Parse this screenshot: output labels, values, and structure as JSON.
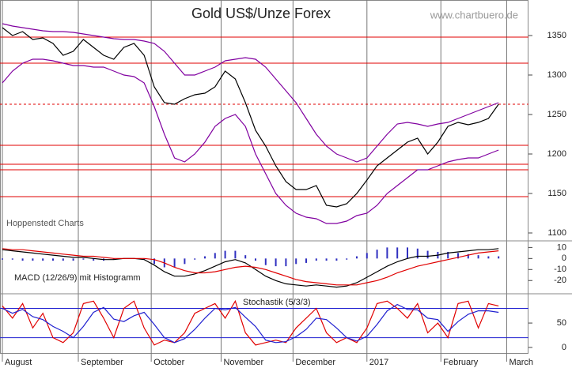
{
  "chart_data": [
    {
      "type": "line",
      "title": "Gold US$/Unze Forex",
      "source": "www.chartbuero.de",
      "note": "Hoppenstedt Charts",
      "xlim": [
        0,
        50
      ],
      "xticks": [
        {
          "value": 0,
          "label": "August"
        },
        {
          "value": 7.5,
          "label": "September"
        },
        {
          "value": 14.7,
          "label": "October"
        },
        {
          "value": 21.6,
          "label": "November"
        },
        {
          "value": 28.7,
          "label": "December"
        },
        {
          "value": 36,
          "label": "2017"
        },
        {
          "value": 43.3,
          "label": "February"
        },
        {
          "value": 49.8,
          "label": "March"
        }
      ],
      "ylim": [
        1090,
        1395
      ],
      "yticks": [
        1100,
        1150,
        1200,
        1250,
        1300,
        1350
      ],
      "levels": [
        1348,
        1315,
        1211,
        1187,
        1180,
        1146
      ],
      "dashed_levels": [
        1263
      ],
      "level_color": "#e00000",
      "series": [
        {
          "color": "#000000",
          "values": [
            1360,
            1350,
            1355,
            1345,
            1347,
            1340,
            1325,
            1330,
            1345,
            1335,
            1325,
            1320,
            1335,
            1340,
            1325,
            1285,
            1265,
            1263,
            1270,
            1275,
            1277,
            1285,
            1305,
            1295,
            1265,
            1230,
            1210,
            1185,
            1165,
            1155,
            1155,
            1160,
            1135,
            1133,
            1137,
            1150,
            1167,
            1185,
            1195,
            1205,
            1215,
            1220,
            1200,
            1215,
            1235,
            1240,
            1237,
            1240,
            1245,
            1263
          ]
        },
        {
          "color": "#8000a0",
          "values": [
            1365,
            1362,
            1360,
            1358,
            1356,
            1355,
            1355,
            1354,
            1352,
            1350,
            1348,
            1346,
            1345,
            1345,
            1343,
            1340,
            1330,
            1315,
            1300,
            1300,
            1305,
            1310,
            1318,
            1320,
            1322,
            1320,
            1310,
            1295,
            1280,
            1265,
            1245,
            1225,
            1210,
            1200,
            1195,
            1190,
            1195,
            1210,
            1225,
            1238,
            1240,
            1238,
            1235,
            1238,
            1240,
            1245,
            1250,
            1255,
            1260,
            1265
          ]
        },
        {
          "color": "#8000a0",
          "values": [
            1290,
            1305,
            1315,
            1320,
            1320,
            1318,
            1315,
            1312,
            1312,
            1310,
            1310,
            1305,
            1300,
            1298,
            1290,
            1260,
            1225,
            1195,
            1190,
            1200,
            1215,
            1235,
            1245,
            1250,
            1235,
            1200,
            1175,
            1150,
            1135,
            1125,
            1120,
            1118,
            1112,
            1112,
            1115,
            1122,
            1125,
            1135,
            1150,
            1160,
            1170,
            1180,
            1180,
            1185,
            1190,
            1193,
            1195,
            1195,
            1200,
            1205
          ]
        }
      ]
    },
    {
      "type": "macd",
      "title": "MACD (12/26/9) mit Histogramm",
      "ylim": [
        -32,
        16
      ],
      "yticks": [
        10,
        0,
        -10,
        -20
      ],
      "bars": {
        "color": "#3030c0",
        "values": [
          -1,
          -1,
          -2,
          -2,
          -2,
          -2,
          -2,
          -2,
          -1,
          -2,
          -2,
          -1,
          0,
          0,
          -1,
          -5,
          -8,
          -8,
          -5,
          -1,
          2,
          5,
          7,
          7,
          3,
          -2,
          -6,
          -7,
          -7,
          -5,
          -4,
          -2,
          -2,
          -2,
          -1,
          2,
          5,
          8,
          10,
          10,
          10,
          9,
          7,
          6,
          6,
          5,
          4,
          3,
          2,
          2
        ]
      },
      "series": [
        {
          "color": "#000000",
          "values": [
            8,
            7,
            6,
            5,
            4,
            3,
            2,
            1,
            1,
            0,
            -1,
            -1,
            0,
            0,
            -1,
            -6,
            -12,
            -16,
            -16,
            -14,
            -11,
            -7,
            -3,
            -1,
            -4,
            -10,
            -16,
            -20,
            -23,
            -24,
            -25,
            -24,
            -25,
            -26,
            -25,
            -22,
            -17,
            -12,
            -7,
            -3,
            0,
            2,
            2,
            3,
            5,
            6,
            7,
            8,
            8,
            9
          ]
        },
        {
          "color": "#e00000",
          "values": [
            9,
            8,
            8,
            7,
            6,
            5,
            4,
            3,
            2,
            2,
            1,
            0,
            0,
            0,
            0,
            -1,
            -4,
            -8,
            -11,
            -13,
            -13,
            -12,
            -10,
            -8,
            -7,
            -8,
            -10,
            -13,
            -16,
            -19,
            -21,
            -22,
            -23,
            -24,
            -24,
            -24,
            -22,
            -20,
            -17,
            -13,
            -10,
            -7,
            -5,
            -3,
            -1,
            1,
            3,
            5,
            6,
            7
          ]
        }
      ]
    },
    {
      "type": "line",
      "title": "Stochastik (5/3/3)",
      "ylim": [
        -13,
        110
      ],
      "yticks": [
        50,
        0
      ],
      "levels": [
        80,
        20
      ],
      "level_color": "#2020d0",
      "series": [
        {
          "color": "#e00000",
          "values": [
            85,
            60,
            90,
            40,
            70,
            20,
            10,
            30,
            90,
            95,
            60,
            20,
            80,
            95,
            40,
            5,
            15,
            10,
            30,
            70,
            80,
            90,
            60,
            95,
            30,
            5,
            10,
            15,
            10,
            40,
            60,
            80,
            30,
            10,
            20,
            10,
            40,
            90,
            95,
            80,
            60,
            90,
            30,
            50,
            20,
            90,
            95,
            40,
            90,
            85
          ]
        },
        {
          "color": "#2020d0",
          "values": [
            80,
            70,
            78,
            63,
            57,
            43,
            33,
            20,
            43,
            72,
            82,
            58,
            53,
            65,
            72,
            47,
            20,
            10,
            18,
            37,
            60,
            80,
            77,
            82,
            62,
            43,
            15,
            10,
            12,
            22,
            37,
            60,
            57,
            40,
            20,
            13,
            23,
            47,
            75,
            88,
            78,
            77,
            60,
            57,
            33,
            53,
            68,
            75,
            75,
            72
          ]
        }
      ]
    }
  ]
}
